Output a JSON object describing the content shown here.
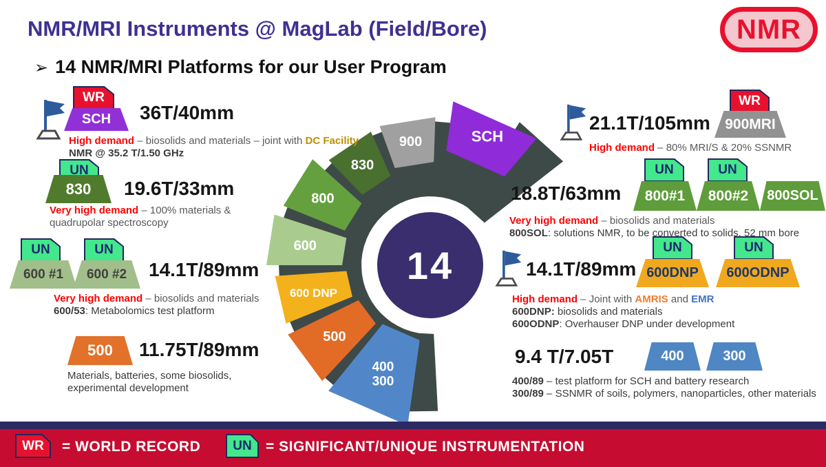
{
  "slide": {
    "title": "NMR/MRI Instruments @ MagLab (Field/Bore)",
    "logo_text": "NMR",
    "bullet_arrow": "➢",
    "bullet_text": "14 NMR/MRI Platforms for our User Program"
  },
  "wheel": {
    "center_label": "14",
    "segments": [
      {
        "label": "SCH"
      },
      {
        "label": "900"
      },
      {
        "label": "830"
      },
      {
        "label": "800"
      },
      {
        "label": "600"
      },
      {
        "label": "600 DNP"
      },
      {
        "label": "500"
      },
      {
        "label": "400",
        "label2": "300"
      }
    ]
  },
  "left_entries": [
    {
      "heading": "36T/40mm",
      "wr": "WR",
      "chip": "SCH",
      "desc": [
        [
          {
            "t": "High demand",
            "c": "red"
          },
          {
            "t": " – biosolids and materials – joint with ",
            "c": "gray"
          },
          {
            "t": "DC Facility",
            "c": "gold"
          }
        ],
        [
          {
            "t": "NMR @ 35.2 T/1.50 GHz",
            "c": "darkb"
          }
        ]
      ]
    },
    {
      "heading": "19.6T/33mm",
      "un": "UN",
      "chip": "830",
      "desc": [
        [
          {
            "t": "Very high demand",
            "c": "red"
          },
          {
            "t": " – 100% materials &",
            "c": "gray"
          }
        ],
        [
          {
            "t": "quadrupolar spectroscopy",
            "c": "gray"
          }
        ]
      ]
    },
    {
      "heading": "14.1T/89mm",
      "un1": "UN",
      "un2": "UN",
      "chip1": "600 #1",
      "chip2": "600 #2",
      "desc": [
        [
          {
            "t": "Very high demand",
            "c": "red"
          },
          {
            "t": " – biosolids and materials",
            "c": "gray"
          }
        ],
        [
          {
            "t": "600/53",
            "c": "darkb"
          },
          {
            "t": ": Metabolomics test platform",
            "c": "dark"
          }
        ]
      ]
    },
    {
      "heading": "11.75T/89mm",
      "chip": "500",
      "desc": [
        [
          {
            "t": "Materials, batteries, some biosolids,",
            "c": "dark"
          }
        ],
        [
          {
            "t": "experimental development",
            "c": "dark"
          }
        ]
      ]
    }
  ],
  "right_entries": [
    {
      "heading": "21.1T/105mm",
      "wr": "WR",
      "chip": "900MRI",
      "desc": [
        [
          {
            "t": "High demand",
            "c": "red"
          },
          {
            "t": " – 80% MRI/S & 20% SSNMR",
            "c": "gray"
          }
        ]
      ]
    },
    {
      "heading": "18.8T/63mm",
      "un1": "UN",
      "un2": "UN",
      "chip1": "800#1",
      "chip2": "800#2",
      "chip3": "800SOL",
      "desc": [
        [
          {
            "t": "Very high demand",
            "c": "red"
          },
          {
            "t": " – biosolids and materials",
            "c": "gray"
          }
        ],
        [
          {
            "t": "800SOL",
            "c": "darkb"
          },
          {
            "t": ": solutions NMR, to be converted to solids, 52 mm bore",
            "c": "dark"
          }
        ]
      ]
    },
    {
      "heading": "14.1T/89mm",
      "un1": "UN",
      "un2": "UN",
      "chip1": "600DNP",
      "chip2": "600ODNP",
      "desc": [
        [
          {
            "t": "High demand",
            "c": "red"
          },
          {
            "t": " – Joint with ",
            "c": "gray"
          },
          {
            "t": "AMRIS",
            "c": "orange"
          },
          {
            "t": " and ",
            "c": "gray"
          },
          {
            "t": "EMR",
            "c": "blue"
          }
        ],
        [
          {
            "t": "600DNP:",
            "c": "darkb"
          },
          {
            "t": "  biosolids and materials",
            "c": "dark"
          }
        ],
        [
          {
            "t": "600ODNP",
            "c": "darkb"
          },
          {
            "t": ": Overhauser DNP under development",
            "c": "dark"
          }
        ]
      ]
    },
    {
      "heading": "9.4 T/7.05T",
      "chip1": "400",
      "chip2": "300",
      "desc": [
        [
          {
            "t": "400/89",
            "c": "darkb"
          },
          {
            "t": " – test platform for SCH and battery research",
            "c": "dark"
          }
        ],
        [
          {
            "t": "300/89",
            "c": "darkb"
          },
          {
            "t": " – SSNMR of soils, polymers, nanoparticles, other materials",
            "c": "dark"
          }
        ]
      ]
    }
  ],
  "legend": {
    "wr_badge": "WR",
    "wr_text": "= WORLD RECORD",
    "un_badge": "UN",
    "un_text": "= SIGNIFICANT/UNIQUE INSTRUMENTATION"
  },
  "colors": {
    "title_purple": "#3E3192",
    "logo_red": "#E8112D",
    "wr_red": "#E8112D",
    "un_green": "#43E78C",
    "bar_red": "#C60C30",
    "navy": "#2B2A63",
    "wheel_base": "#3E4A48",
    "center_circle": "#3A2E6E",
    "seg_sch": "#8F2BD8",
    "seg_900": "#A0A0A0",
    "seg_830": "#4A7030",
    "seg_800": "#64A13E",
    "seg_600": "#A9CC8E",
    "seg_600dnp": "#F3B11C",
    "seg_500": "#E26B26",
    "seg_400300": "#5187C8"
  }
}
